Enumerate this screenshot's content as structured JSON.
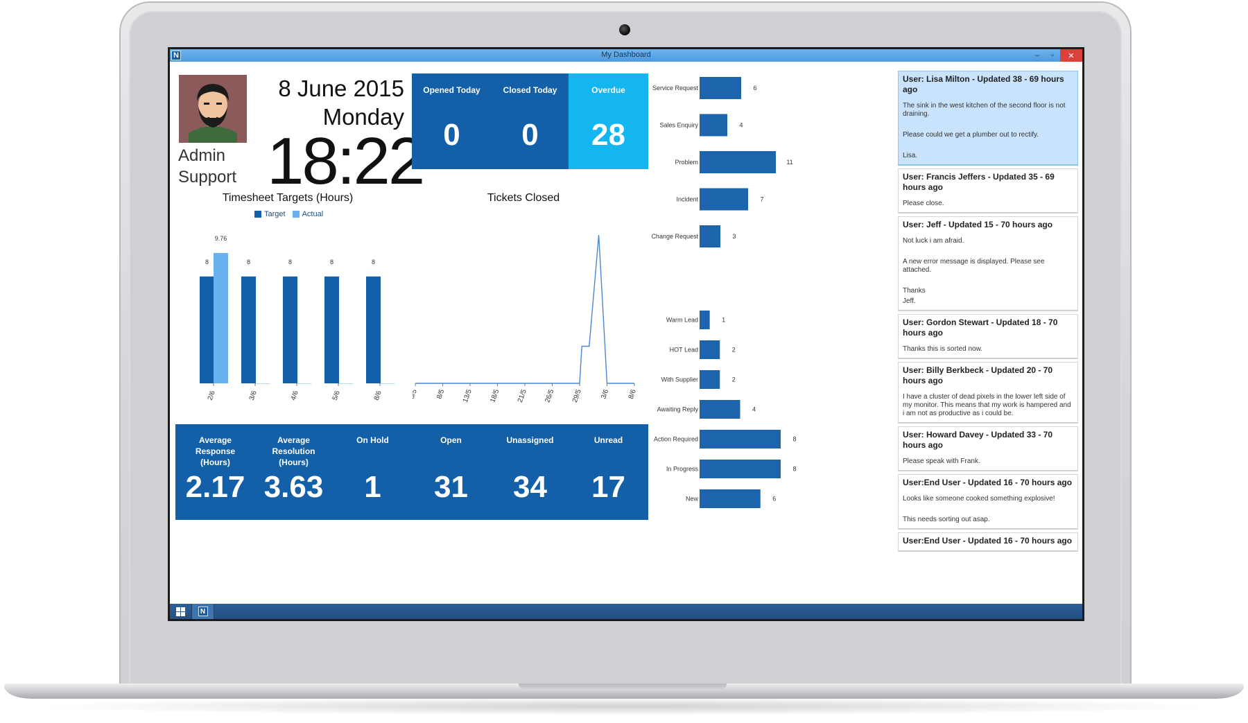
{
  "window": {
    "title": "My Dashboard",
    "logo_letter": "N",
    "minimize": "–",
    "maximize": "▫",
    "close": "✕"
  },
  "taskbar": {
    "app_letter": "N"
  },
  "user": {
    "first": "Admin",
    "last": "Support"
  },
  "datetime": {
    "date": "8 June 2015",
    "weekday": "Monday",
    "time": "18:22"
  },
  "top_tiles": [
    {
      "label": "Opened Today",
      "value": "0",
      "color": "#1460a8"
    },
    {
      "label": "Closed Today",
      "value": "0",
      "color": "#1460a8"
    },
    {
      "label": "Overdue",
      "value": "28",
      "color": "#13b6ee"
    }
  ],
  "bottom_tiles": [
    {
      "label_lines": [
        "Average",
        "Response",
        "(Hours)"
      ],
      "value": "2.17"
    },
    {
      "label_lines": [
        "Average",
        "Resolution",
        "(Hours)"
      ],
      "value": "3.63"
    },
    {
      "label_lines": [
        "On Hold"
      ],
      "value": "1"
    },
    {
      "label_lines": [
        "Open"
      ],
      "value": "31"
    },
    {
      "label_lines": [
        "Unassigned"
      ],
      "value": "34"
    },
    {
      "label_lines": [
        "Unread"
      ],
      "value": "17"
    }
  ],
  "colors": {
    "primary": "#1460a8",
    "light": "#6ab1f0",
    "cyan": "#13b6ee",
    "bar": "#1c64ac"
  },
  "chart_data": [
    {
      "type": "bar",
      "title": "Timesheet Targets (Hours)",
      "categories": [
        "2/6",
        "3/6",
        "4/6",
        "5/6",
        "8/6"
      ],
      "series": [
        {
          "name": "Target",
          "values": [
            8,
            8,
            8,
            8,
            8
          ],
          "labels": [
            "8",
            "8",
            "8",
            "8",
            "8"
          ]
        },
        {
          "name": "Actual",
          "values": [
            9.76,
            0,
            0,
            0,
            0
          ],
          "labels": [
            "9.76",
            "",
            "",
            "",
            ""
          ]
        }
      ],
      "ylim": [
        0,
        11
      ],
      "legend": "top",
      "grid": false
    },
    {
      "type": "line",
      "title": "Tickets Closed",
      "x_ticks": [
        "6/5",
        "8/5",
        "13/5",
        "18/5",
        "21/5",
        "26/5",
        "29/5",
        "3/6",
        "8/6"
      ],
      "x": [
        "6/5",
        "8/5",
        "13/5",
        "18/5",
        "21/5",
        "26/5",
        "29/5",
        "30/5",
        "1/6",
        "2/6",
        "3/6",
        "8/6"
      ],
      "values": [
        0,
        0,
        0,
        0,
        0,
        0,
        0,
        5,
        5,
        20,
        0,
        0
      ],
      "ylim": [
        0,
        20
      ],
      "grid": false
    },
    {
      "type": "bar",
      "orientation": "horizontal",
      "categories": [
        "Service Request",
        "Sales Enquiry",
        "Problem",
        "Incident",
        "Change Request"
      ],
      "values": [
        6,
        4,
        11,
        7,
        3
      ],
      "xlim": [
        0,
        11
      ]
    },
    {
      "type": "bar",
      "orientation": "horizontal",
      "categories": [
        "Warm Lead",
        "HOT Lead",
        "With Supplier",
        "Awaiting Reply",
        "Action Required",
        "In Progress",
        "New"
      ],
      "values": [
        1,
        2,
        2,
        4,
        8,
        8,
        6
      ],
      "xlim": [
        0,
        8
      ]
    }
  ],
  "updates": [
    {
      "title": "User: Lisa Milton - Updated 38 - 69 hours ago",
      "selected": true,
      "lines": [
        "The sink in the west kitchen of the second floor is not draining.",
        "",
        "Please could we get a plumber out to rectify.",
        "",
        "Lisa."
      ]
    },
    {
      "title": "User: Francis Jeffers - Updated 35 - 69 hours ago",
      "selected": false,
      "lines": [
        "Please close."
      ]
    },
    {
      "title": "User: Jeff - Updated 15 - 70 hours ago",
      "selected": false,
      "lines": [
        "Not luck i am afraid.",
        "",
        "A new error message is displayed. Please see attached.",
        "",
        "Thanks",
        "Jeff."
      ]
    },
    {
      "title": "User: Gordon Stewart - Updated 18 - 70 hours ago",
      "selected": false,
      "lines": [
        "Thanks this is sorted now."
      ]
    },
    {
      "title": "User: Billy Berkbeck - Updated 20 - 70 hours ago",
      "selected": false,
      "lines": [
        "I have a cluster of dead pixels in the lower left side of my monitor. This means that my work is hampered and i am not as productive as i could be."
      ]
    },
    {
      "title": "User: Howard Davey - Updated 33 - 70 hours ago",
      "selected": false,
      "lines": [
        "Please speak with Frank."
      ]
    },
    {
      "title": "User:End User - Updated 16 - 70 hours ago",
      "selected": false,
      "lines": [
        "Looks like someone cooked something explosive!",
        "",
        "This needs sorting out asap."
      ]
    },
    {
      "title": "User:End User - Updated 16 - 70 hours ago",
      "selected": false,
      "lines": []
    }
  ]
}
